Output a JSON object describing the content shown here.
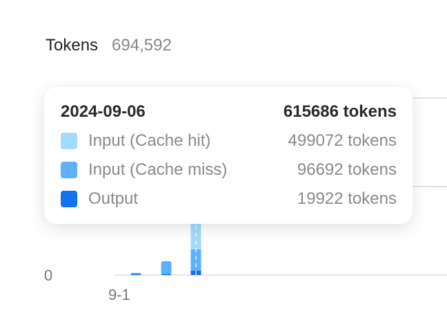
{
  "header": {
    "title": "Tokens",
    "total": "694,592"
  },
  "tooltip": {
    "date": "2024-09-06",
    "total": "615686 tokens",
    "rows": [
      {
        "label": "Input (Cache hit)",
        "value": "499072 tokens",
        "color": "#a3dcfb"
      },
      {
        "label": "Input (Cache miss)",
        "value": "96692 tokens",
        "color": "#5eb0fb"
      },
      {
        "label": "Output",
        "value": "19922 tokens",
        "color": "#1372ee"
      }
    ]
  },
  "chart_data": {
    "type": "bar",
    "stacked": true,
    "y_tick_label": "0",
    "x_tick_label": "9-1",
    "ylim": [
      0,
      800000
    ],
    "grid": true,
    "series": [
      {
        "name": "Input (Cache hit)",
        "color": "#a3dcfb",
        "values": [
          0,
          0,
          499072
        ]
      },
      {
        "name": "Input (Cache miss)",
        "color": "#5eb0fb",
        "values": [
          3000,
          58000,
          96692
        ]
      },
      {
        "name": "Output",
        "color": "#1372ee",
        "values": [
          500,
          3000,
          19922
        ]
      }
    ]
  }
}
